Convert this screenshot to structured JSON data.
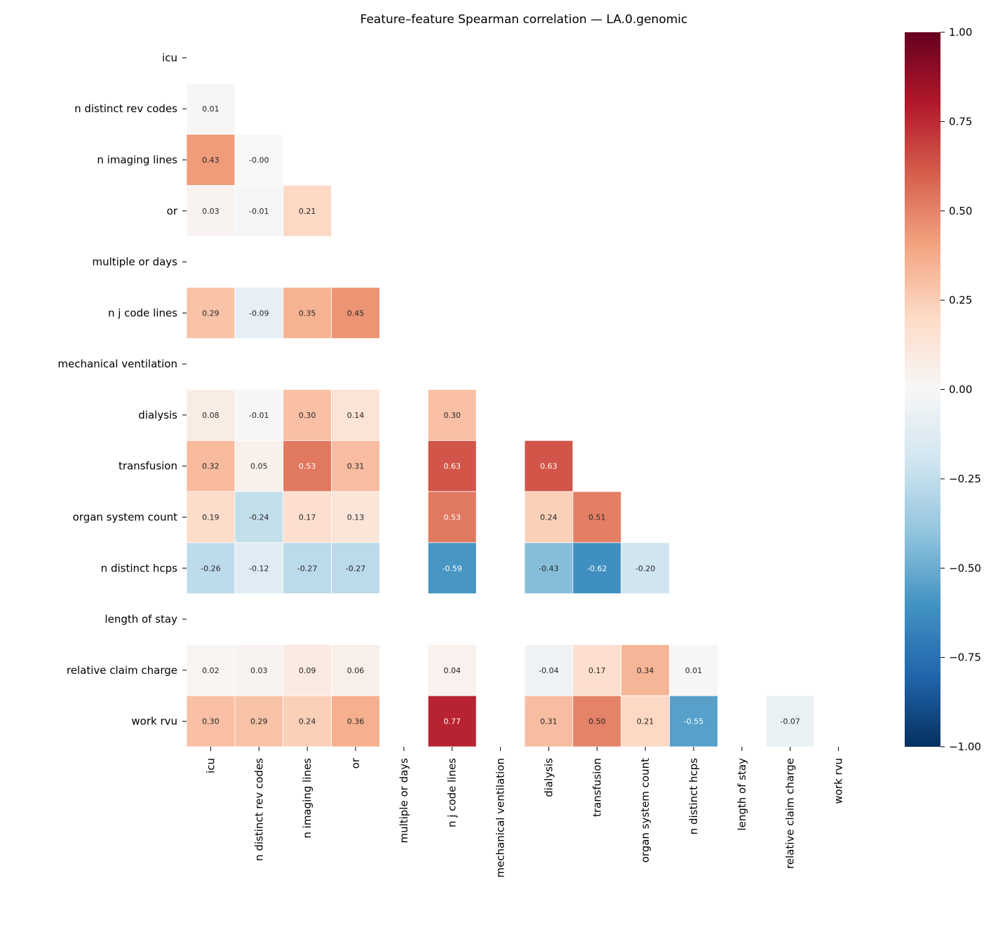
{
  "chart_data": {
    "type": "heatmap",
    "title": "Feature–feature Spearman correlation — LA.0.genomic",
    "labels": [
      "icu",
      "n distinct rev codes",
      "n imaging lines",
      "or",
      "multiple or days",
      "n j code lines",
      "mechanical ventilation",
      "dialysis",
      "transfusion",
      "organ system count",
      "n distinct hcps",
      "length of stay",
      "relative claim charge",
      "work rvu"
    ],
    "mask": "upper triangle and diagonal hidden; rows/columns for multiple or days, mechanical ventilation, length of stay are blank",
    "values": [
      [],
      [
        0.01
      ],
      [
        0.43,
        -0.0
      ],
      [
        0.03,
        -0.01,
        0.21
      ],
      [
        null,
        null,
        null,
        null
      ],
      [
        0.29,
        -0.09,
        0.35,
        0.45,
        null
      ],
      [
        null,
        null,
        null,
        null,
        null,
        null
      ],
      [
        0.08,
        -0.01,
        0.3,
        0.14,
        null,
        0.3,
        null
      ],
      [
        0.32,
        0.05,
        0.53,
        0.31,
        null,
        0.63,
        null,
        0.63
      ],
      [
        0.19,
        -0.24,
        0.17,
        0.13,
        null,
        0.53,
        null,
        0.24,
        0.51
      ],
      [
        -0.26,
        -0.12,
        -0.27,
        -0.27,
        null,
        -0.59,
        null,
        -0.43,
        -0.62,
        -0.2
      ],
      [
        null,
        null,
        null,
        null,
        null,
        null,
        null,
        null,
        null,
        null,
        null
      ],
      [
        0.02,
        0.03,
        0.09,
        0.06,
        null,
        0.04,
        null,
        -0.04,
        0.17,
        0.34,
        0.01,
        null
      ],
      [
        0.3,
        0.29,
        0.24,
        0.36,
        null,
        0.77,
        null,
        0.31,
        0.5,
        0.21,
        -0.55,
        null,
        -0.07
      ]
    ],
    "colormap": "RdBu_r",
    "colorbar": {
      "range": [
        -1,
        1
      ],
      "ticks": [
        "1.00",
        "0.75",
        "0.50",
        "0.25",
        "0.00",
        "−0.25",
        "−0.50",
        "−0.75",
        "−1.00"
      ]
    },
    "annotation_format": "0.00",
    "grid": false
  }
}
